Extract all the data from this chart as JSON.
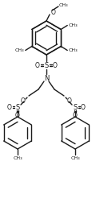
{
  "bg_color": "#ffffff",
  "line_color": "#1a1a1a",
  "lw": 1.0,
  "figsize": [
    1.16,
    2.57
  ],
  "dpi": 100,
  "xlim": [
    0,
    116
  ],
  "ylim": [
    0,
    257
  ]
}
